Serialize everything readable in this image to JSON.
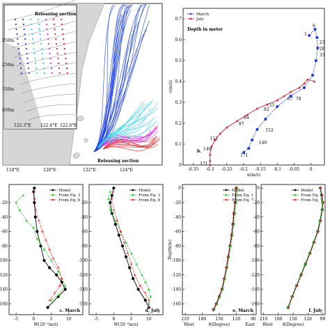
{
  "map_panel": {
    "lon_ticks": [
      "118°E",
      "120°E",
      "122°E",
      "124°E"
    ],
    "inset_lon_ticks": [
      "122.3°E",
      "122.4°E",
      "122.6°E"
    ],
    "inset_depth_ticks": [
      "150m",
      "250m",
      "350m",
      "450m"
    ],
    "label_top": "Releasing section",
    "label_bottom": "Releasing section"
  },
  "chart_data": [
    {
      "id": "b",
      "type": "line",
      "panel_label": "b.",
      "xlabel": "u(m/s)",
      "ylabel": "v(m/s)",
      "annotation": "Depth in meter",
      "xlim": [
        -0.38,
        0.04
      ],
      "ylim": [
        0,
        0.75
      ],
      "xticks": [
        -0.35,
        -0.3,
        -0.25,
        -0.2,
        -0.15,
        -0.1,
        -0.05,
        0,
        0.05
      ],
      "yticks": [
        0,
        0.1,
        0.2,
        0.3,
        0.4,
        0.5,
        0.6,
        0.7
      ],
      "legend": [
        "March",
        "July"
      ],
      "series": [
        {
          "name": "March",
          "color": "#1f3fd6",
          "x": [
            -0.005,
            0.012,
            0.018,
            0.02,
            0.015,
            0.005,
            -0.02,
            -0.06,
            -0.1,
            -0.135,
            -0.16,
            -0.175,
            -0.185,
            -0.2
          ],
          "y": [
            0.62,
            0.65,
            0.61,
            0.56,
            0.5,
            0.43,
            0.37,
            0.33,
            0.28,
            0.22,
            0.17,
            0.12,
            0.08,
            0.06
          ],
          "labels": [
            {
              "text": "1",
              "x": -0.02,
              "y": 0.62
            },
            {
              "text": "6",
              "x": 0.005,
              "y": 0.66
            },
            {
              "text": "23",
              "x": 0.025,
              "y": 0.58
            },
            {
              "text": "28",
              "x": 0.025,
              "y": 0.55
            },
            {
              "text": "33",
              "x": 0.025,
              "y": 0.52
            },
            {
              "text": "112",
              "x": -0.135,
              "y": 0.16
            },
            {
              "text": "149",
              "x": -0.155,
              "y": 0.1
            },
            {
              "text": "171",
              "x": -0.21,
              "y": 0.04
            }
          ]
        },
        {
          "name": "July",
          "color": "#d0182a",
          "x": [
            0.01,
            -0.01,
            -0.02,
            -0.035,
            -0.06,
            -0.08,
            -0.1,
            -0.13,
            -0.16,
            -0.19,
            -0.22,
            -0.25,
            -0.27,
            -0.285,
            -0.295,
            -0.3,
            -0.3,
            -0.3
          ],
          "y": [
            0.4,
            0.41,
            0.39,
            0.37,
            0.35,
            0.33,
            0.31,
            0.29,
            0.27,
            0.24,
            0.21,
            0.18,
            0.15,
            0.12,
            0.09,
            0.05,
            0.02,
            0.0
          ],
          "labels": [
            {
              "text": "67",
              "x": -0.07,
              "y": 0.31
            },
            {
              "text": "78",
              "x": -0.045,
              "y": 0.31
            },
            {
              "text": "53",
              "x": -0.125,
              "y": 0.28
            },
            {
              "text": "82",
              "x": -0.14,
              "y": 0.26
            },
            {
              "text": "84",
              "x": -0.2,
              "y": 0.22
            },
            {
              "text": "97",
              "x": -0.215,
              "y": 0.19
            },
            {
              "text": "112",
              "x": -0.3,
              "y": 0.12
            },
            {
              "text": "149",
              "x": -0.32,
              "y": 0.07
            },
            {
              "text": "171",
              "x": -0.33,
              "y": 0.0
            }
          ]
        }
      ]
    },
    {
      "id": "c",
      "type": "line",
      "panel_label": "c. March",
      "xlabel": "W(10⁻⁵m/s)",
      "ylabel": "",
      "xlim": [
        -7,
        14
      ],
      "ylim": [
        -175,
        5
      ],
      "xticks": [
        -5,
        0,
        5,
        10
      ],
      "yticks": [
        -20,
        -40,
        -60,
        -80,
        -100,
        -120,
        -140,
        -160
      ],
      "legend": [
        "Model",
        "From Eq. 3",
        "From Eq. 6"
      ],
      "series": [
        {
          "name": "Model",
          "color": "#000000",
          "x": [
            0.2,
            0,
            0.2,
            0.5,
            1,
            2,
            3,
            4.5,
            6.5,
            8,
            9,
            7,
            4
          ],
          "y": [
            0,
            -5,
            -20,
            -40,
            -60,
            -80,
            -100,
            -110,
            -120,
            -130,
            -140,
            -150,
            -165
          ]
        },
        {
          "name": "From Eq. 3",
          "color": "#2ecc2e",
          "x": [
            -3,
            -5,
            -4,
            -2,
            0,
            1,
            3,
            5,
            7,
            8,
            9,
            7,
            5
          ],
          "y": [
            -10,
            -20,
            -30,
            -45,
            -55,
            -70,
            -85,
            -100,
            -115,
            -125,
            -135,
            -148,
            -155
          ]
        },
        {
          "name": "From Eq. 6",
          "color": "#e03030",
          "x": [
            0.1,
            0.3,
            0.6,
            1.5,
            2.5,
            3.5,
            4.5,
            5.5,
            7,
            8,
            7.5,
            6,
            4.5
          ],
          "y": [
            -5,
            -15,
            -30,
            -45,
            -60,
            -72,
            -85,
            -97,
            -110,
            -125,
            -135,
            -145,
            -155
          ]
        }
      ]
    },
    {
      "id": "d",
      "type": "line",
      "panel_label": "d. July",
      "xlabel": "W(10⁻⁵m/s)",
      "ylabel": "",
      "xlim": [
        -7,
        14
      ],
      "ylim": [
        -175,
        5
      ],
      "xticks": [
        -5,
        0,
        5,
        10
      ],
      "yticks": [
        -20,
        -40,
        -60,
        -80,
        -100,
        -120,
        -140,
        -160
      ],
      "legend": [
        "Model",
        "From Eq. 3",
        "From Eq. 6"
      ],
      "series": [
        {
          "name": "Model",
          "color": "#000000",
          "x": [
            0,
            -0.5,
            -1,
            -0.5,
            0.5,
            1.5,
            2.5,
            3.5,
            4.5,
            5.5,
            7,
            9,
            10
          ],
          "y": [
            0,
            -10,
            -20,
            -35,
            -50,
            -65,
            -80,
            -95,
            -110,
            -125,
            -140,
            -155,
            -165
          ]
        },
        {
          "name": "From Eq. 3",
          "color": "#2ecc2e",
          "x": [
            -1,
            -1.5,
            -1,
            0.5,
            2,
            3.5,
            5,
            6.5,
            8,
            9,
            10,
            10.5,
            10
          ],
          "y": [
            -5,
            -15,
            -30,
            -45,
            -60,
            -75,
            -90,
            -105,
            -120,
            -130,
            -140,
            -150,
            -160
          ]
        },
        {
          "name": "From Eq. 6",
          "color": "#e03030",
          "x": [
            -0.2,
            -0.5,
            0,
            1,
            2,
            3,
            4,
            5,
            6,
            7.5,
            9,
            10,
            10
          ],
          "y": [
            -5,
            -15,
            -30,
            -45,
            -60,
            -75,
            -90,
            -105,
            -120,
            -135,
            -145,
            -155,
            -165
          ]
        }
      ]
    },
    {
      "id": "e",
      "type": "line",
      "panel_label": "e. March",
      "xlabel": "θ(Degree)",
      "ylabel": "Depth(m)",
      "xlim": [
        215,
        85
      ],
      "ylim": [
        -175,
        5
      ],
      "xticks": [
        210,
        180,
        150,
        120,
        90
      ],
      "yticks": [
        0,
        -20,
        -40,
        -60,
        -80,
        -100,
        -120,
        -140,
        -160
      ],
      "side_labels": [
        "West",
        "East"
      ],
      "legend": [
        "Model",
        "From Eq. 1",
        "From Eq. 7"
      ],
      "series": [
        {
          "name": "Model",
          "color": "#000000",
          "x": [
            120,
            122,
            124,
            126,
            128,
            131,
            134,
            137,
            141,
            145,
            150,
            155,
            160
          ],
          "y": [
            0,
            -20,
            -35,
            -50,
            -65,
            -80,
            -95,
            -110,
            -125,
            -140,
            -150,
            -160,
            -168
          ]
        },
        {
          "name": "From Eq. 1",
          "color": "#2ecc2e",
          "x": [
            118,
            120,
            122,
            124,
            127,
            130,
            133,
            136,
            140,
            144,
            149,
            154,
            159
          ],
          "y": [
            0,
            -20,
            -35,
            -50,
            -65,
            -80,
            -95,
            -110,
            -125,
            -140,
            -150,
            -160,
            -168
          ]
        },
        {
          "name": "From Eq. 7",
          "color": "#e03030",
          "x": [
            121,
            123,
            125,
            127,
            129,
            132,
            135,
            138,
            142,
            146,
            151,
            156,
            161
          ],
          "y": [
            0,
            -20,
            -35,
            -50,
            -65,
            -80,
            -95,
            -110,
            -125,
            -140,
            -150,
            -160,
            -168
          ]
        }
      ]
    },
    {
      "id": "f",
      "type": "line",
      "panel_label": "f. July",
      "xlabel": "θ(Degree)",
      "ylabel": "",
      "xlim": [
        215,
        85
      ],
      "ylim": [
        -175,
        5
      ],
      "xticks": [
        210,
        180,
        150,
        120,
        90
      ],
      "yticks": [
        0,
        -20,
        -40,
        -60,
        -80,
        -100,
        -120,
        -140,
        -160
      ],
      "side_labels": [
        "West"
      ],
      "legend": [
        "Model",
        "From Eq. 1",
        "From Eq. 7"
      ],
      "series": [
        {
          "name": "Model",
          "color": "#000000",
          "x": [
            95,
            92,
            90,
            91,
            95,
            100,
            108,
            116,
            125,
            134,
            143,
            152,
            160
          ],
          "y": [
            0,
            -10,
            -20,
            -30,
            -45,
            -60,
            -75,
            -90,
            -105,
            -120,
            -135,
            -150,
            -165
          ]
        },
        {
          "name": "From Eq. 1",
          "color": "#2ecc2e",
          "x": [
            96,
            93,
            91,
            92,
            96,
            101,
            109,
            117,
            126,
            135,
            144,
            153,
            161
          ],
          "y": [
            0,
            -10,
            -20,
            -30,
            -45,
            -60,
            -75,
            -90,
            -105,
            -120,
            -135,
            -150,
            -165
          ]
        },
        {
          "name": "From Eq. 7",
          "color": "#e03030",
          "x": [
            94,
            91,
            89,
            90,
            94,
            99,
            107,
            115,
            124,
            133,
            142,
            151,
            159
          ],
          "y": [
            0,
            -10,
            -20,
            -30,
            -45,
            -60,
            -75,
            -90,
            -105,
            -120,
            -135,
            -150,
            -165
          ]
        }
      ]
    }
  ]
}
